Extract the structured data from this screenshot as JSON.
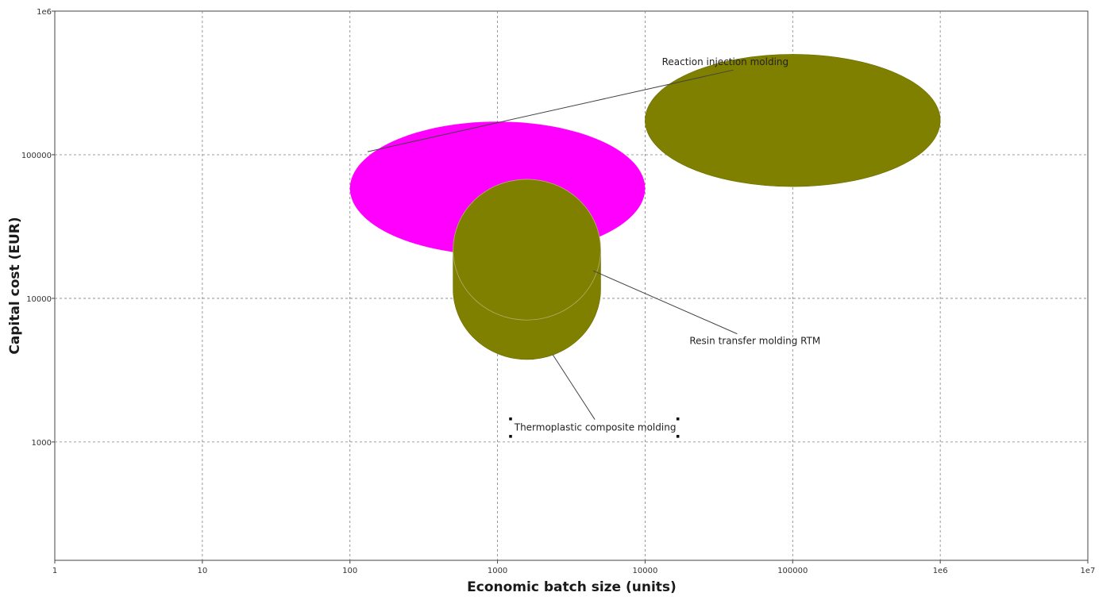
{
  "chart_data": {
    "type": "bubble",
    "xlabel": "Economic batch size (units)",
    "ylabel": "Capital cost (EUR)",
    "x_scale": "log",
    "y_scale": "log",
    "xlim": [
      1,
      10000000
    ],
    "ylim": [
      150,
      1000000
    ],
    "x_ticks": [
      {
        "value": 1,
        "label": "1"
      },
      {
        "value": 10,
        "label": "10"
      },
      {
        "value": 100,
        "label": "100"
      },
      {
        "value": 1000,
        "label": "1000"
      },
      {
        "value": 10000,
        "label": "10000"
      },
      {
        "value": 100000,
        "label": "100000"
      },
      {
        "value": 1000000,
        "label": "1e6"
      },
      {
        "value": 10000000,
        "label": "1e7"
      }
    ],
    "y_ticks": [
      {
        "value": 1000,
        "label": "1000"
      },
      {
        "value": 10000,
        "label": "10000"
      },
      {
        "value": 100000,
        "label": "100000"
      },
      {
        "value": 1000000,
        "label": "1e6"
      }
    ],
    "grid": true,
    "series": [
      {
        "name": "Reaction injection molding",
        "color": "#ff00ff",
        "x_range": [
          100,
          10000
        ],
        "y_range": [
          20000,
          170000
        ],
        "label_anchor": {
          "x": 13000,
          "y": 420000
        }
      },
      {
        "name": "",
        "color": "#808000",
        "x_range": [
          10000,
          1000000
        ],
        "y_range": [
          60000,
          500000
        ]
      },
      {
        "name": "Resin transfer molding RTM",
        "color": "#808000",
        "x_range": [
          500,
          5000
        ],
        "y_range": [
          5000,
          50000
        ],
        "label_anchor": {
          "x": 20000,
          "y": 4800
        }
      },
      {
        "name": "Thermoplastic composite molding",
        "color": "#808000",
        "x_range": [
          500,
          5000
        ],
        "y_range": [
          5000,
          50000
        ],
        "label_anchor": {
          "x": 1300,
          "y": 1200
        }
      }
    ]
  }
}
